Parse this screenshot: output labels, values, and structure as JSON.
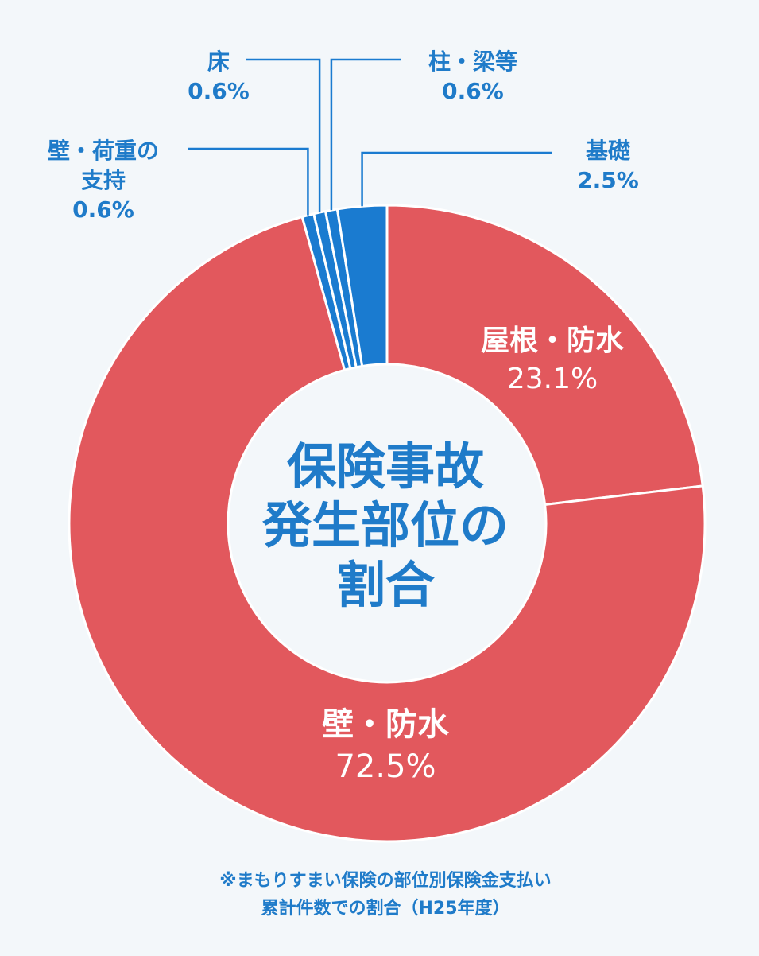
{
  "colors": {
    "ring_main": "#e2585d",
    "ring_small": "#1a7bd0",
    "label_blue": "#1f7bc9",
    "background": "#f3f7fa"
  },
  "chart_data": {
    "type": "pie",
    "title_lines": [
      "保険事故",
      "発生部位の",
      "割合"
    ],
    "slices": [
      {
        "label_lines": [
          "屋根・防水"
        ],
        "value": 23.1,
        "value_label": "23.1%",
        "color": "#e2585d"
      },
      {
        "label_lines": [
          "壁・防水"
        ],
        "value": 72.5,
        "value_label": "72.5%",
        "color": "#e2585d"
      },
      {
        "label_lines": [
          "壁・荷重の",
          "支持"
        ],
        "value": 0.6,
        "value_label": "0.6%",
        "color": "#1a7bd0"
      },
      {
        "label_lines": [
          "床"
        ],
        "value": 0.6,
        "value_label": "0.6%",
        "color": "#1a7bd0"
      },
      {
        "label_lines": [
          "柱・梁等"
        ],
        "value": 0.6,
        "value_label": "0.6%",
        "color": "#1a7bd0"
      },
      {
        "label_lines": [
          "基礎"
        ],
        "value": 2.5,
        "value_label": "2.5%",
        "color": "#1a7bd0"
      }
    ],
    "footnote_lines": [
      "※まもりすまい保険の部位別保険金支払い",
      "累計件数での割合（H25年度）"
    ]
  }
}
